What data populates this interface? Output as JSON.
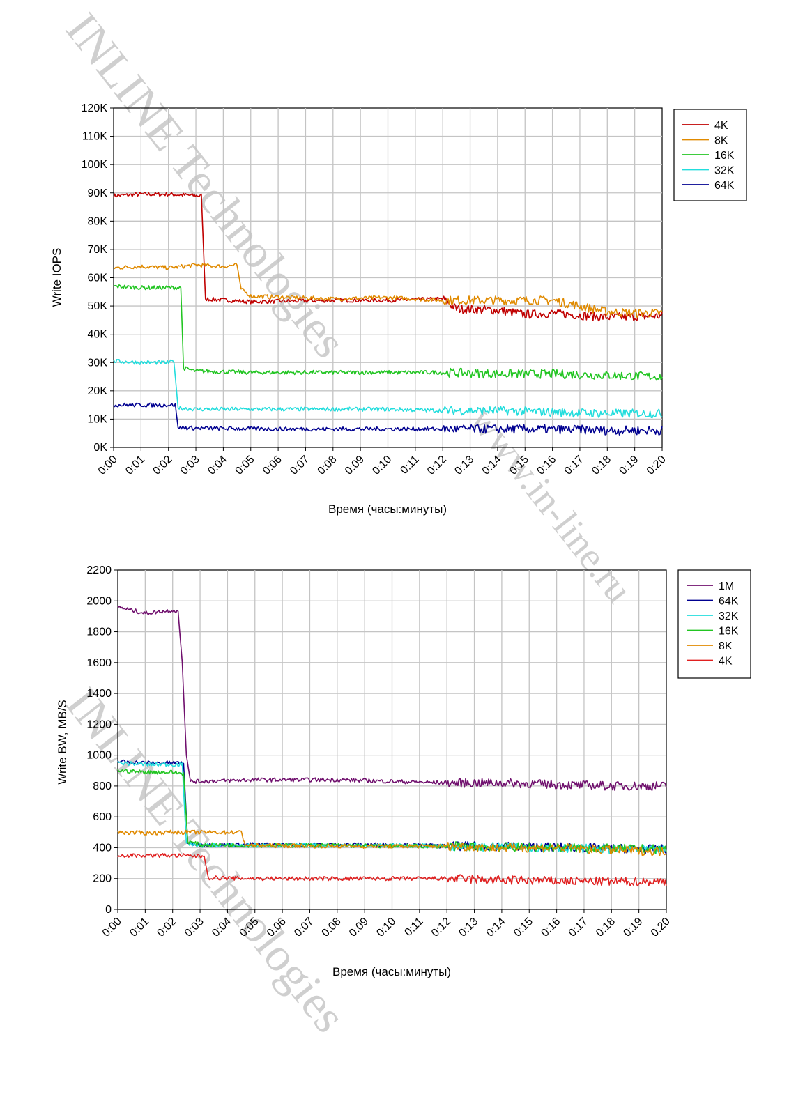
{
  "watermark": {
    "company": "INLINE Technologies",
    "site": "www.in-line.ru",
    "color": "#cfcfcf"
  },
  "chart_data": [
    {
      "type": "line",
      "xlabel": "Время (часы:минуты)",
      "ylabel": "Write IOPS",
      "xticks": [
        "0:00",
        "0:01",
        "0:02",
        "0:03",
        "0:04",
        "0:05",
        "0:06",
        "0:07",
        "0:08",
        "0:09",
        "0:10",
        "0:11",
        "0:12",
        "0:13",
        "0:14",
        "0:15",
        "0:16",
        "0:17",
        "0:18",
        "0:19",
        "0:20"
      ],
      "yticks": [
        "0K",
        "10K",
        "20K",
        "30K",
        "40K",
        "50K",
        "60K",
        "70K",
        "80K",
        "90K",
        "100K",
        "110K",
        "120K"
      ],
      "xlim": [
        0,
        20
      ],
      "ylim": [
        0,
        120
      ],
      "yunit": "K IOPS",
      "grid": true,
      "legend_position": "right",
      "series": [
        {
          "name": "4K",
          "color": "#c00000",
          "points": [
            [
              0,
              89
            ],
            [
              1,
              89.5
            ],
            [
              2,
              89.5
            ],
            [
              3.1,
              89
            ],
            [
              3.2,
              89
            ],
            [
              3.35,
              52.5
            ],
            [
              5,
              51.5
            ],
            [
              8,
              52
            ],
            [
              10,
              52
            ],
            [
              12,
              52.5
            ],
            [
              12.5,
              49
            ],
            [
              14,
              48.5
            ],
            [
              15,
              47
            ],
            [
              16,
              47.5
            ],
            [
              18,
              46
            ],
            [
              20,
              46.5
            ]
          ]
        },
        {
          "name": "8K",
          "color": "#e08a00",
          "points": [
            [
              0,
              63.5
            ],
            [
              1,
              64
            ],
            [
              2,
              63.5
            ],
            [
              3,
              64.5
            ],
            [
              4,
              64
            ],
            [
              4.5,
              64.5
            ],
            [
              4.65,
              56
            ],
            [
              5,
              53.5
            ],
            [
              8,
              52.5
            ],
            [
              10,
              53
            ],
            [
              12,
              52
            ],
            [
              14,
              52
            ],
            [
              15,
              52
            ],
            [
              16,
              52
            ],
            [
              17,
              50
            ],
            [
              18,
              48
            ],
            [
              19,
              47.5
            ],
            [
              20,
              47.5
            ]
          ]
        },
        {
          "name": "16K",
          "color": "#22c522",
          "points": [
            [
              0,
              57
            ],
            [
              1,
              56.5
            ],
            [
              2,
              56.5
            ],
            [
              2.45,
              56.5
            ],
            [
              2.55,
              28
            ],
            [
              3,
              27
            ],
            [
              5,
              26.5
            ],
            [
              8,
              26.5
            ],
            [
              10,
              26.5
            ],
            [
              12,
              26.5
            ],
            [
              14,
              26
            ],
            [
              16,
              26
            ],
            [
              18,
              25.5
            ],
            [
              20,
              25
            ]
          ]
        },
        {
          "name": "32K",
          "color": "#22dddd",
          "points": [
            [
              0,
              30.5
            ],
            [
              1,
              30
            ],
            [
              2,
              30
            ],
            [
              2.2,
              30.5
            ],
            [
              2.35,
              14
            ],
            [
              3,
              13.5
            ],
            [
              5,
              13.5
            ],
            [
              8,
              13.5
            ],
            [
              10,
              13.5
            ],
            [
              12,
              13
            ],
            [
              14,
              13
            ],
            [
              16,
              12.5
            ],
            [
              18,
              12
            ],
            [
              20,
              12
            ]
          ]
        },
        {
          "name": "64K",
          "color": "#000090",
          "points": [
            [
              0,
              15
            ],
            [
              1,
              15
            ],
            [
              2,
              15
            ],
            [
              2.25,
              15
            ],
            [
              2.35,
              7
            ],
            [
              3,
              6.8
            ],
            [
              6,
              6.5
            ],
            [
              10,
              6.5
            ],
            [
              14,
              6.5
            ],
            [
              17,
              6.3
            ],
            [
              18,
              6
            ],
            [
              20,
              6
            ]
          ]
        }
      ]
    },
    {
      "type": "line",
      "xlabel": "Время (часы:минуты)",
      "ylabel": "Write BW, MB/S",
      "xticks": [
        "0:00",
        "0:01",
        "0:02",
        "0:03",
        "0:04",
        "0:05",
        "0:06",
        "0:07",
        "0:08",
        "0:09",
        "0:10",
        "0:11",
        "0:12",
        "0:13",
        "0:14",
        "0:15",
        "0:16",
        "0:17",
        "0:18",
        "0:19",
        "0:20"
      ],
      "yticks": [
        "0",
        "200",
        "400",
        "600",
        "800",
        "1000",
        "1200",
        "1400",
        "1600",
        "1800",
        "2000",
        "2200"
      ],
      "xlim": [
        0,
        20
      ],
      "ylim": [
        0,
        2200
      ],
      "grid": true,
      "legend_position": "right",
      "series": [
        {
          "name": "1M",
          "color": "#70106e",
          "points": [
            [
              0,
              1960
            ],
            [
              0.5,
              1940
            ],
            [
              1,
              1920
            ],
            [
              1.5,
              1930
            ],
            [
              2,
              1940
            ],
            [
              2.2,
              1930
            ],
            [
              2.35,
              1600
            ],
            [
              2.5,
              1000
            ],
            [
              2.65,
              830
            ],
            [
              3,
              830
            ],
            [
              5,
              840
            ],
            [
              8,
              840
            ],
            [
              10,
              830
            ],
            [
              12,
              820
            ],
            [
              14,
              820
            ],
            [
              16,
              810
            ],
            [
              18,
              800
            ],
            [
              20,
              800
            ]
          ]
        },
        {
          "name": "64K",
          "color": "#000090",
          "points": [
            [
              0,
              960
            ],
            [
              1,
              950
            ],
            [
              2,
              950
            ],
            [
              2.4,
              950
            ],
            [
              2.55,
              430
            ],
            [
              3,
              420
            ],
            [
              5,
              420
            ],
            [
              8,
              420
            ],
            [
              10,
              420
            ],
            [
              12,
              410
            ],
            [
              14,
              410
            ],
            [
              16,
              405
            ],
            [
              18,
              395
            ],
            [
              20,
              390
            ]
          ]
        },
        {
          "name": "32K",
          "color": "#22dddd",
          "points": [
            [
              0,
              950
            ],
            [
              1,
              940
            ],
            [
              2,
              940
            ],
            [
              2.35,
              940
            ],
            [
              2.5,
              430
            ],
            [
              3,
              415
            ],
            [
              5,
              415
            ],
            [
              8,
              415
            ],
            [
              10,
              415
            ],
            [
              12,
              410
            ],
            [
              14,
              405
            ],
            [
              16,
              400
            ],
            [
              18,
              390
            ],
            [
              20,
              385
            ]
          ]
        },
        {
          "name": "16K",
          "color": "#22c522",
          "points": [
            [
              0,
              900
            ],
            [
              1,
              890
            ],
            [
              2,
              890
            ],
            [
              2.4,
              880
            ],
            [
              2.55,
              440
            ],
            [
              3,
              420
            ],
            [
              5,
              415
            ],
            [
              8,
              415
            ],
            [
              10,
              410
            ],
            [
              12,
              410
            ],
            [
              14,
              405
            ],
            [
              16,
              400
            ],
            [
              18,
              395
            ],
            [
              20,
              390
            ]
          ]
        },
        {
          "name": "8K",
          "color": "#e08a00",
          "points": [
            [
              0,
              500
            ],
            [
              1,
              495
            ],
            [
              2,
              500
            ],
            [
              3,
              500
            ],
            [
              4,
              500
            ],
            [
              4.5,
              500
            ],
            [
              4.65,
              420
            ],
            [
              5,
              415
            ],
            [
              8,
              410
            ],
            [
              10,
              410
            ],
            [
              12,
              410
            ],
            [
              14,
              400
            ],
            [
              16,
              400
            ],
            [
              18,
              385
            ],
            [
              20,
              375
            ]
          ]
        },
        {
          "name": "4K",
          "color": "#e02020",
          "points": [
            [
              0,
              350
            ],
            [
              1,
              350
            ],
            [
              2,
              350
            ],
            [
              3,
              345
            ],
            [
              3.15,
              345
            ],
            [
              3.3,
              205
            ],
            [
              5,
              200
            ],
            [
              8,
              200
            ],
            [
              10,
              200
            ],
            [
              12,
              200
            ],
            [
              14,
              190
            ],
            [
              16,
              185
            ],
            [
              18,
              180
            ],
            [
              20,
              180
            ]
          ]
        }
      ]
    }
  ]
}
